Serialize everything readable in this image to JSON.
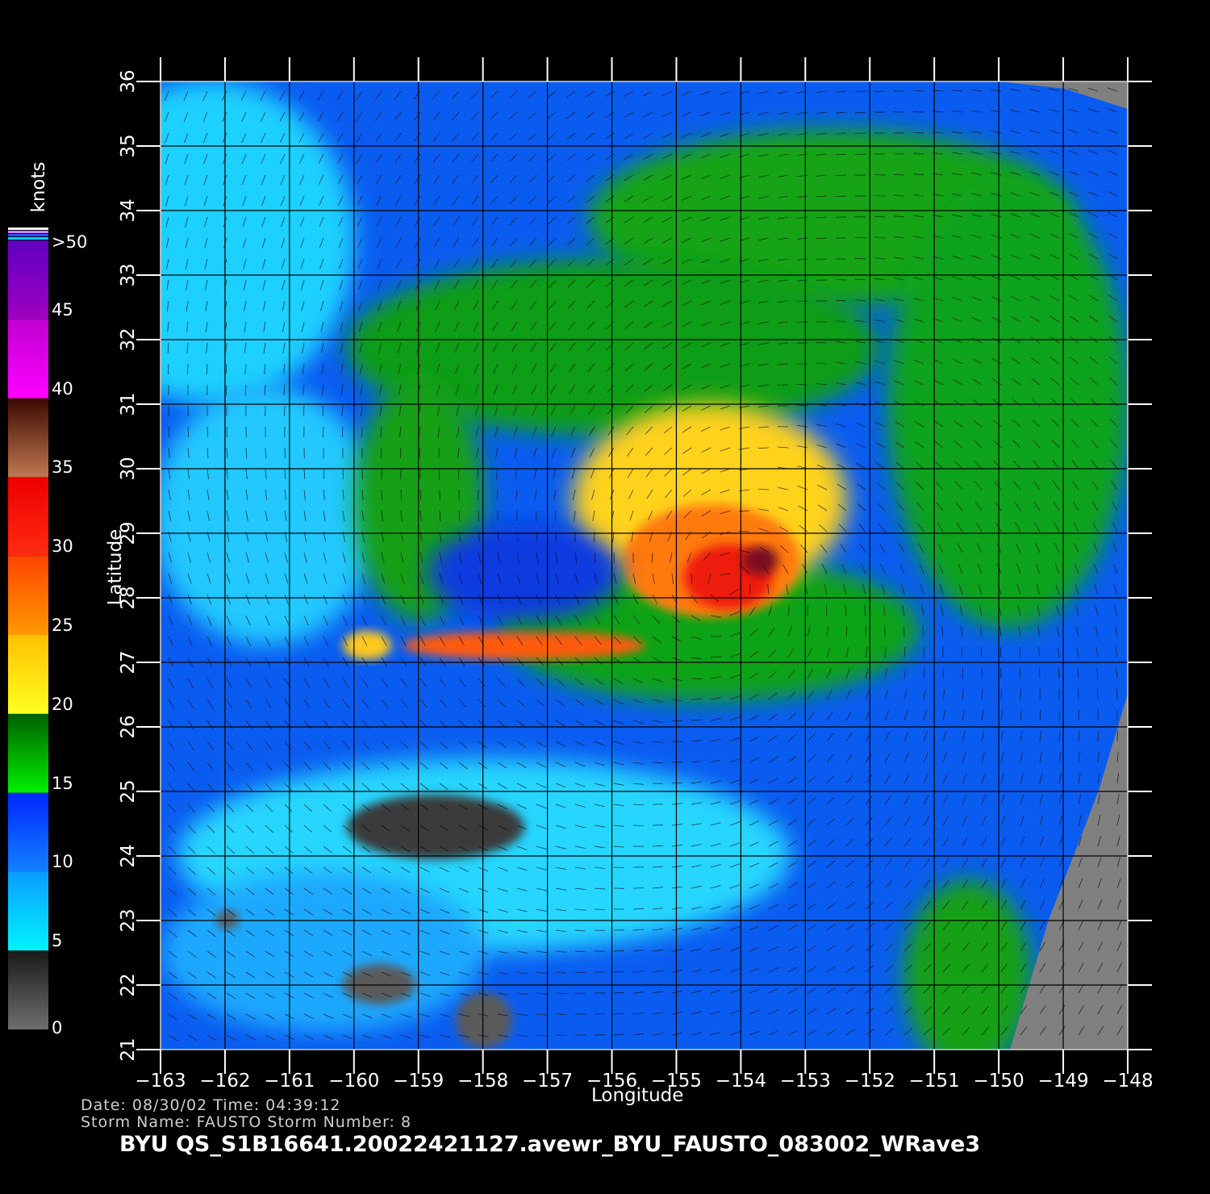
{
  "chart_data": {
    "type": "heatmap",
    "title": "BYU  QS_S1B16641.20022421127.avewr_BYU_FAUSTO_083002_WRave3",
    "xlabel": "Longitude",
    "ylabel": "Latitude",
    "xlim": [
      -163,
      -148
    ],
    "ylim": [
      21,
      36
    ],
    "x_ticks": [
      -163,
      -162,
      -161,
      -160,
      -159,
      -158,
      -157,
      -156,
      -155,
      -154,
      -153,
      -152,
      -151,
      -150,
      -149,
      -148
    ],
    "y_ticks": [
      21,
      22,
      23,
      24,
      25,
      26,
      27,
      28,
      29,
      30,
      31,
      32,
      33,
      34,
      35,
      36
    ],
    "grid": true,
    "colorbar": {
      "title": "knots",
      "labels": [
        "0",
        "5",
        "10",
        "15",
        "20",
        "25",
        "30",
        "35",
        "40",
        "45",
        ">50"
      ],
      "bands": [
        {
          "from": 0,
          "to": 5,
          "colors": [
            "#6e6e6e",
            "#1a1a1a"
          ]
        },
        {
          "from": 5,
          "to": 10,
          "colors": [
            "#00f4ff",
            "#0a9cff"
          ]
        },
        {
          "from": 10,
          "to": 15,
          "colors": [
            "#1380ff",
            "#0026ff"
          ]
        },
        {
          "from": 15,
          "to": 20,
          "colors": [
            "#00f000",
            "#006000"
          ]
        },
        {
          "from": 20,
          "to": 25,
          "colors": [
            "#ffff20",
            "#ffc000"
          ]
        },
        {
          "from": 25,
          "to": 30,
          "colors": [
            "#ff9900",
            "#ff4400"
          ]
        },
        {
          "from": 30,
          "to": 35,
          "colors": [
            "#ff2a10",
            "#ee0000"
          ]
        },
        {
          "from": 35,
          "to": 40,
          "colors": [
            "#c07850",
            "#3a0a00"
          ]
        },
        {
          "from": 40,
          "to": 45,
          "colors": [
            "#ff00ff",
            "#c000d0"
          ]
        },
        {
          "from": 45,
          "to": 50,
          "colors": [
            "#a000c0",
            "#6000c0"
          ]
        }
      ]
    },
    "storm_center": {
      "lon": -154.2,
      "lat": 28.2
    },
    "peak_wind_knots": 40,
    "no_data_color": "#808080"
  },
  "info": {
    "date_line": "Date: 08/30/02   Time: 04:39:12",
    "storm_line": "Storm  Name: FAUSTO   Storm  Number: 8"
  }
}
